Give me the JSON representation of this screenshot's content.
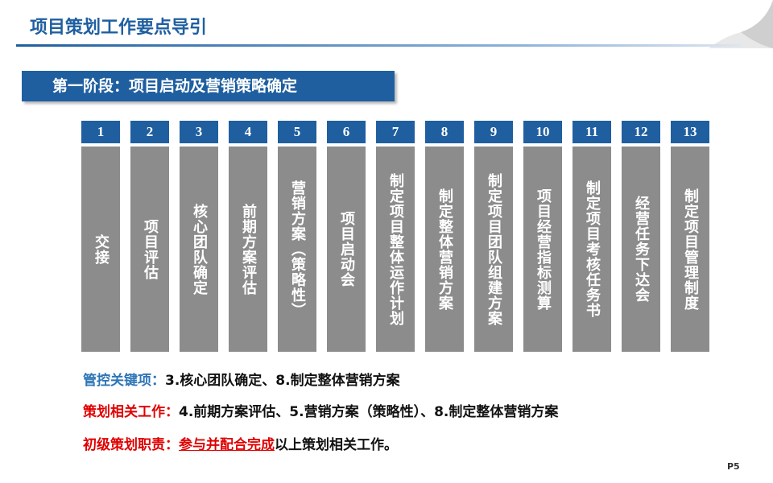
{
  "header": {
    "title": "项目策划工作要点导引"
  },
  "stage": "第一阶段：项目启动及营销策略确定",
  "steps": [
    {
      "number": "1",
      "label": "交接"
    },
    {
      "number": "2",
      "label": "项目评估"
    },
    {
      "number": "3",
      "label": "核心团队确定"
    },
    {
      "number": "4",
      "label": "前期方案评估"
    },
    {
      "number": "5",
      "label": "营销方案（策略性）"
    },
    {
      "number": "6",
      "label": "项目启动会"
    },
    {
      "number": "7",
      "label": "制定项目整体运作计划"
    },
    {
      "number": "8",
      "label": "制定整体营销方案"
    },
    {
      "number": "9",
      "label": "制定项目团队组建方案"
    },
    {
      "number": "10",
      "label": "项目经营指标测算"
    },
    {
      "number": "11",
      "label": "制定项目考核任务书"
    },
    {
      "number": "12",
      "label": "经营任务下达会"
    },
    {
      "number": "13",
      "label": "制定项目管理制度"
    }
  ],
  "notes": [
    {
      "label": "管控关键项：",
      "text": "3.核心团队确定、8.制定整体营销方案"
    },
    {
      "label": "策划相关工作：",
      "text": "4.前期方案评估、5.营销方案（策略性）、8.制定整体营销方案"
    },
    {
      "label": "初级策划职责：",
      "highlight": "参与并配合完成",
      "text": "以上策划相关工作。"
    }
  ],
  "page_number": "P5"
}
